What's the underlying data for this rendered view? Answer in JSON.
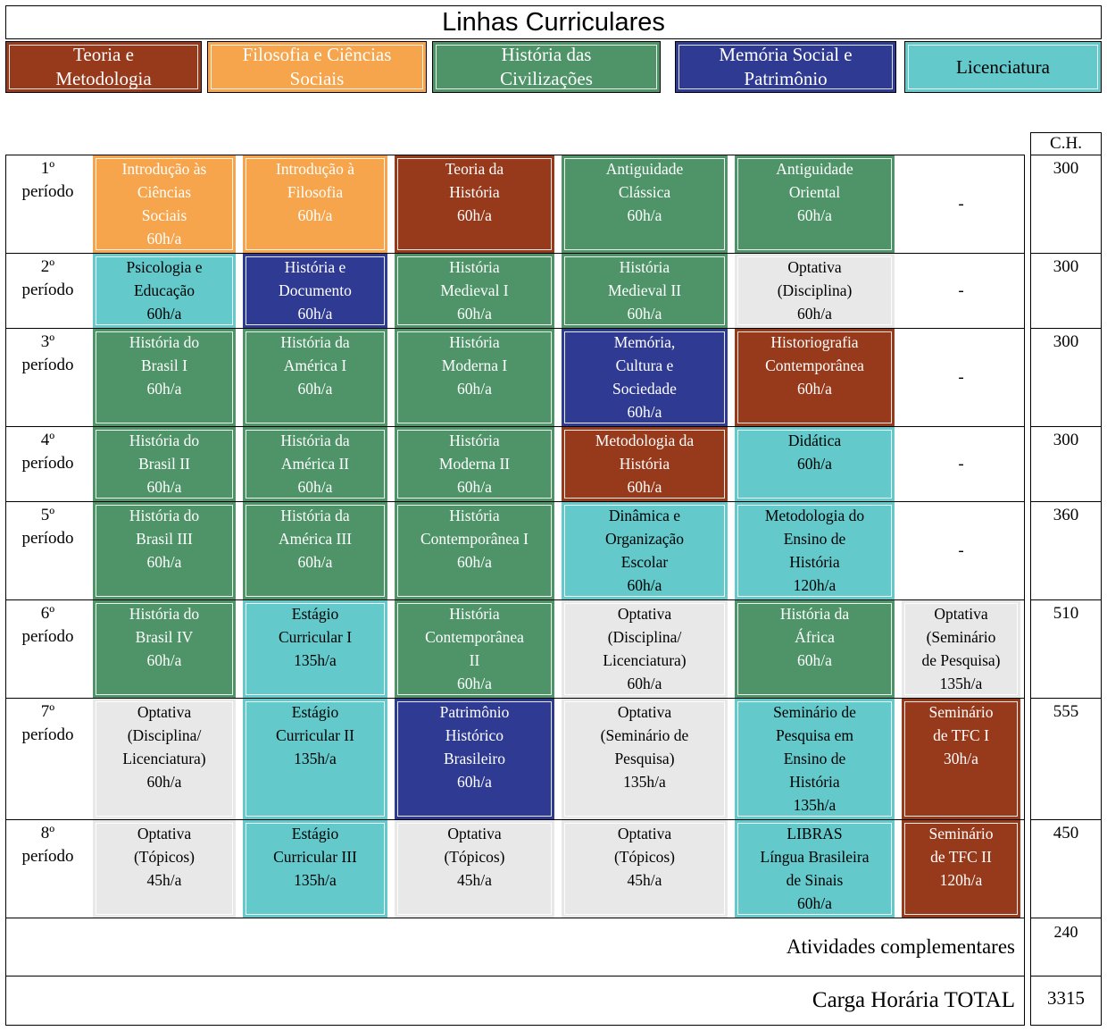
{
  "title": "Linhas Curriculares",
  "ch_header": "C.H.",
  "palette": {
    "teoria": {
      "bg": "#97391B",
      "fg": "#FFFFFF"
    },
    "filosofia": {
      "bg": "#F7A54C",
      "fg": "#FFFFFF"
    },
    "historia": {
      "bg": "#4F9468",
      "fg": "#FFFFFF"
    },
    "memoria": {
      "bg": "#2F3A92",
      "fg": "#FFFFFF"
    },
    "licenciatura": {
      "bg": "#63C9CB",
      "fg": "#000000"
    },
    "optativa": {
      "bg": "#E8E8E8",
      "fg": "#000000"
    }
  },
  "legend": [
    {
      "id": "teoria-e-metodologia",
      "color": "teoria",
      "lines": [
        "Teoria e",
        "Metodologia"
      ]
    },
    {
      "id": "filosofia-e-ciencias-sociais",
      "color": "filosofia",
      "lines": [
        "Filosofia e Ciências",
        "Sociais"
      ]
    },
    {
      "id": "historia-das-civilizacoes",
      "color": "historia",
      "lines": [
        "História das",
        "Civilizações"
      ]
    },
    {
      "id": "memoria-social-e-patrimonio",
      "color": "memoria",
      "lines": [
        "Memória Social e",
        "Patrimônio"
      ]
    },
    {
      "id": "licenciatura",
      "color": "licenciatura",
      "lines": [
        "Licenciatura"
      ]
    }
  ],
  "rows": [
    {
      "period": [
        "1º",
        "período"
      ],
      "ch": "300",
      "cells": [
        {
          "color": "filosofia",
          "lines": [
            "Introdução às",
            "Ciências",
            "Sociais",
            "60h/a"
          ]
        },
        {
          "color": "filosofia",
          "lines": [
            "Introdução à",
            "Filosofia",
            "60h/a"
          ]
        },
        {
          "color": "teoria",
          "lines": [
            "Teoria da",
            "História",
            "60h/a"
          ]
        },
        {
          "color": "historia",
          "lines": [
            "Antiguidade",
            "Clássica",
            "60h/a"
          ]
        },
        {
          "color": "historia",
          "lines": [
            "Antiguidade",
            "Oriental",
            "60h/a"
          ]
        },
        {
          "dash": "-"
        }
      ]
    },
    {
      "period": [
        "2º",
        "período"
      ],
      "ch": "300",
      "cells": [
        {
          "color": "licenciatura",
          "lines": [
            "Psicologia e",
            "Educação",
            "60h/a"
          ]
        },
        {
          "color": "memoria",
          "lines": [
            "História e",
            "Documento",
            "60h/a"
          ]
        },
        {
          "color": "historia",
          "lines": [
            "História",
            "Medieval I",
            "60h/a"
          ]
        },
        {
          "color": "historia",
          "lines": [
            "História",
            "Medieval II",
            "60h/a"
          ]
        },
        {
          "color": "optativa",
          "lines": [
            "Optativa",
            "(Disciplina)",
            "60h/a"
          ]
        },
        {
          "dash": "-"
        }
      ]
    },
    {
      "period": [
        "3º",
        "período"
      ],
      "ch": "300",
      "cells": [
        {
          "color": "historia",
          "lines": [
            "História do",
            "Brasil I",
            "60h/a"
          ]
        },
        {
          "color": "historia",
          "lines": [
            "História da",
            "América I",
            "60h/a"
          ]
        },
        {
          "color": "historia",
          "lines": [
            "História",
            "Moderna I",
            "60h/a"
          ]
        },
        {
          "color": "memoria",
          "lines": [
            "Memória,",
            "Cultura e",
            "Sociedade",
            "60h/a"
          ]
        },
        {
          "color": "teoria",
          "lines": [
            "Historiografia",
            "Contemporânea",
            "60h/a"
          ]
        },
        {
          "dash": "-"
        }
      ]
    },
    {
      "period": [
        "4º",
        "período"
      ],
      "ch": "300",
      "cells": [
        {
          "color": "historia",
          "lines": [
            "História do",
            "Brasil II",
            "60h/a"
          ]
        },
        {
          "color": "historia",
          "lines": [
            "História da",
            "América II",
            "60h/a"
          ]
        },
        {
          "color": "historia",
          "lines": [
            "História",
            "Moderna II",
            "60h/a"
          ]
        },
        {
          "color": "teoria",
          "lines": [
            "Metodologia da",
            "História",
            "60h/a"
          ]
        },
        {
          "color": "licenciatura",
          "lines": [
            "Didática",
            "60h/a"
          ]
        },
        {
          "dash": "-"
        }
      ]
    },
    {
      "period": [
        "5º",
        "período"
      ],
      "ch": "360",
      "cells": [
        {
          "color": "historia",
          "lines": [
            "História do",
            "Brasil III",
            "60h/a"
          ]
        },
        {
          "color": "historia",
          "lines": [
            "História da",
            "América III",
            "60h/a"
          ]
        },
        {
          "color": "historia",
          "lines": [
            "História",
            "Contemporânea I",
            "60h/a"
          ]
        },
        {
          "color": "licenciatura",
          "lines": [
            "Dinâmica e",
            "Organização",
            "Escolar",
            "60h/a"
          ]
        },
        {
          "color": "licenciatura",
          "lines": [
            "Metodologia do",
            "Ensino de",
            "História",
            "120h/a"
          ]
        },
        {
          "dash": "-"
        }
      ]
    },
    {
      "period": [
        "6º",
        "período"
      ],
      "ch": "510",
      "cells": [
        {
          "color": "historia",
          "lines": [
            "História do",
            "Brasil IV",
            "60h/a"
          ]
        },
        {
          "color": "licenciatura",
          "lines": [
            "Estágio",
            "Curricular I",
            "135h/a"
          ]
        },
        {
          "color": "historia",
          "lines": [
            "História",
            "Contemporânea",
            "II",
            "60h/a"
          ]
        },
        {
          "color": "optativa",
          "lines": [
            "Optativa",
            "(Disciplina/",
            "Licenciatura)",
            "60h/a"
          ]
        },
        {
          "color": "historia",
          "lines": [
            "História da",
            "África",
            "60h/a"
          ]
        },
        {
          "color": "optativa",
          "lines": [
            "Optativa",
            "(Seminário",
            "de Pesquisa)",
            "135h/a"
          ]
        }
      ]
    },
    {
      "period": [
        "7º",
        "período"
      ],
      "ch": "555",
      "cells": [
        {
          "color": "optativa",
          "lines": [
            "Optativa",
            "(Disciplina/",
            "Licenciatura)",
            "60h/a"
          ]
        },
        {
          "color": "licenciatura",
          "lines": [
            "Estágio",
            "Curricular II",
            "135h/a"
          ]
        },
        {
          "color": "memoria",
          "lines": [
            "Patrimônio",
            "Histórico",
            "Brasileiro",
            "60h/a"
          ]
        },
        {
          "color": "optativa",
          "lines": [
            "Optativa",
            "(Seminário de",
            "Pesquisa)",
            "135h/a"
          ]
        },
        {
          "color": "licenciatura",
          "lines": [
            "Seminário de",
            "Pesquisa em",
            "Ensino de",
            "História",
            "135h/a"
          ]
        },
        {
          "color": "teoria",
          "lines": [
            "Seminário",
            "de TFC I",
            "30h/a"
          ]
        }
      ]
    },
    {
      "period": [
        "8º",
        "período"
      ],
      "ch": "450",
      "cells": [
        {
          "color": "optativa",
          "lines": [
            "Optativa",
            "(Tópicos)",
            "45h/a"
          ]
        },
        {
          "color": "licenciatura",
          "lines": [
            "Estágio",
            "Curricular III",
            "135h/a"
          ]
        },
        {
          "color": "optativa",
          "lines": [
            "Optativa",
            "(Tópicos)",
            "45h/a"
          ]
        },
        {
          "color": "optativa",
          "lines": [
            "Optativa",
            "(Tópicos)",
            "45h/a"
          ]
        },
        {
          "color": "licenciatura",
          "lines": [
            "LIBRAS",
            "Língua Brasileira",
            "de Sinais",
            "60h/a"
          ]
        },
        {
          "color": "teoria",
          "lines": [
            "Seminário",
            "de TFC II",
            "120h/a"
          ]
        }
      ]
    }
  ],
  "footer": [
    {
      "label": "Atividades complementares",
      "value": "240"
    },
    {
      "label": "Carga Horária TOTAL",
      "value": "3315"
    }
  ]
}
